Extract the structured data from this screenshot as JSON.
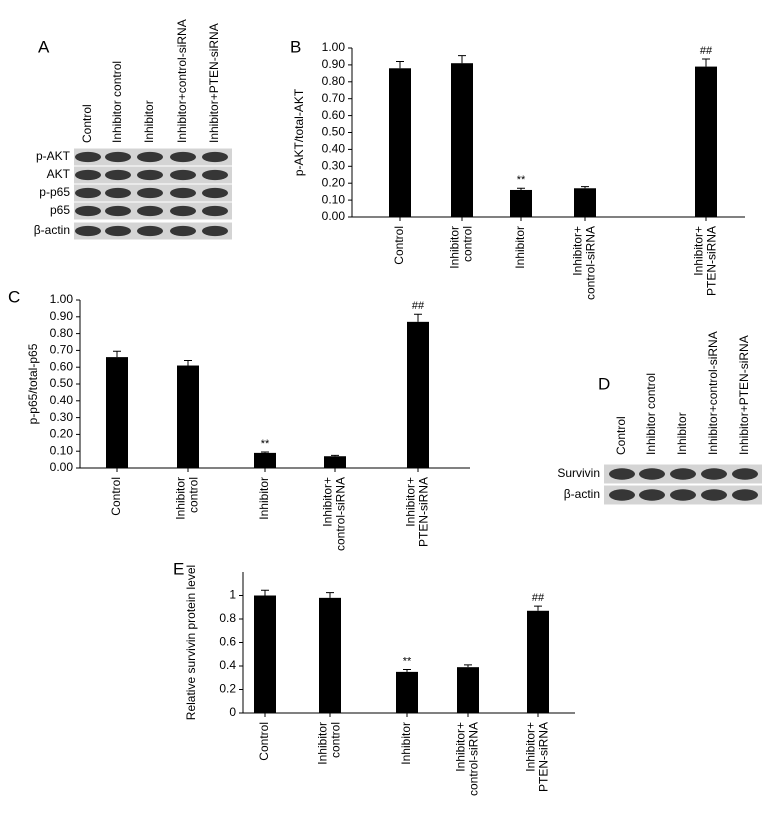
{
  "blot_a": {
    "letter": "A",
    "lanes": [
      "Control",
      "Inhibitor control",
      "Inhibitor",
      "Inhibitor+control-siRNA",
      "Inhibitor+PTEN-siRNA"
    ],
    "rows": [
      "p-AKT",
      "AKT",
      "p-p65",
      "p65",
      "β-actin"
    ]
  },
  "blot_d": {
    "letter": "D",
    "lanes": [
      "Control",
      "Inhibitor control",
      "Inhibitor",
      "Inhibitor+control-siRNA",
      "Inhibitor+PTEN-siRNA"
    ],
    "rows": [
      "Survivin",
      "β-actin"
    ]
  },
  "chart_data": [
    {
      "type": "bar",
      "letter": "B",
      "ylabel": "p-AKT/total-AKT",
      "color": "#000000",
      "categories": [
        "Control",
        "Inhibitor\ncontrol",
        "Inhibitor",
        "Inhibitor+\ncontrol-siRNA",
        "Inhibitor+\nPTEN-siRNA"
      ],
      "values": [
        0.88,
        0.91,
        0.16,
        0.17,
        0.89
      ],
      "errors": [
        0.04,
        0.045,
        0.01,
        0.01,
        0.045
      ],
      "markers": [
        null,
        null,
        "**",
        null,
        "##"
      ],
      "ylim": [
        0,
        1
      ],
      "yticks": [
        {
          "value": 0,
          "label": "0.00"
        },
        {
          "value": 0.1,
          "label": "0.10"
        },
        {
          "value": 0.2,
          "label": "0.20"
        },
        {
          "value": 0.3,
          "label": "0.30"
        },
        {
          "value": 0.4,
          "label": "0.40"
        },
        {
          "value": 0.5,
          "label": "0.50"
        },
        {
          "value": 0.6,
          "label": "0.60"
        },
        {
          "value": 0.7,
          "label": "0.70"
        },
        {
          "value": 0.8,
          "label": "0.80"
        },
        {
          "value": 0.9,
          "label": "0.90"
        },
        {
          "value": 1,
          "label": "1.00"
        }
      ]
    },
    {
      "type": "bar",
      "letter": "C",
      "ylabel": "p-p65/total-p65",
      "color": "#000000",
      "categories": [
        "Control",
        "Inhibitor\ncontrol",
        "Inhibitor",
        "Inhibitor+\ncontrol-siRNA",
        "Inhibitor+\nPTEN-siRNA"
      ],
      "values": [
        0.66,
        0.61,
        0.09,
        0.07,
        0.87
      ],
      "errors": [
        0.035,
        0.03,
        0.005,
        0.005,
        0.045
      ],
      "markers": [
        null,
        null,
        "**",
        null,
        "##"
      ],
      "ylim": [
        0,
        1
      ],
      "yticks": [
        {
          "value": 0,
          "label": "0.00"
        },
        {
          "value": 0.1,
          "label": "0.10"
        },
        {
          "value": 0.2,
          "label": "0.20"
        },
        {
          "value": 0.3,
          "label": "0.30"
        },
        {
          "value": 0.4,
          "label": "0.40"
        },
        {
          "value": 0.5,
          "label": "0.50"
        },
        {
          "value": 0.6,
          "label": "0.60"
        },
        {
          "value": 0.7,
          "label": "0.70"
        },
        {
          "value": 0.8,
          "label": "0.80"
        },
        {
          "value": 0.9,
          "label": "0.90"
        },
        {
          "value": 1,
          "label": "1.00"
        }
      ]
    },
    {
      "type": "bar",
      "letter": "E",
      "ylabel": "Relative survivin protein level",
      "color": "#000000",
      "categories": [
        "Control",
        "Inhibitor\ncontrol",
        "Inhibitor",
        "Inhibitor+\ncontrol-siRNA",
        "Inhibitor+\nPTEN-siRNA"
      ],
      "values": [
        1.0,
        0.98,
        0.35,
        0.39,
        0.87
      ],
      "errors": [
        0.045,
        0.045,
        0.02,
        0.02,
        0.04
      ],
      "markers": [
        null,
        null,
        "**",
        null,
        "##"
      ],
      "ylim": [
        0,
        1.2
      ],
      "yticks": [
        0,
        0.2,
        0.4,
        0.6,
        0.8,
        1
      ]
    }
  ]
}
